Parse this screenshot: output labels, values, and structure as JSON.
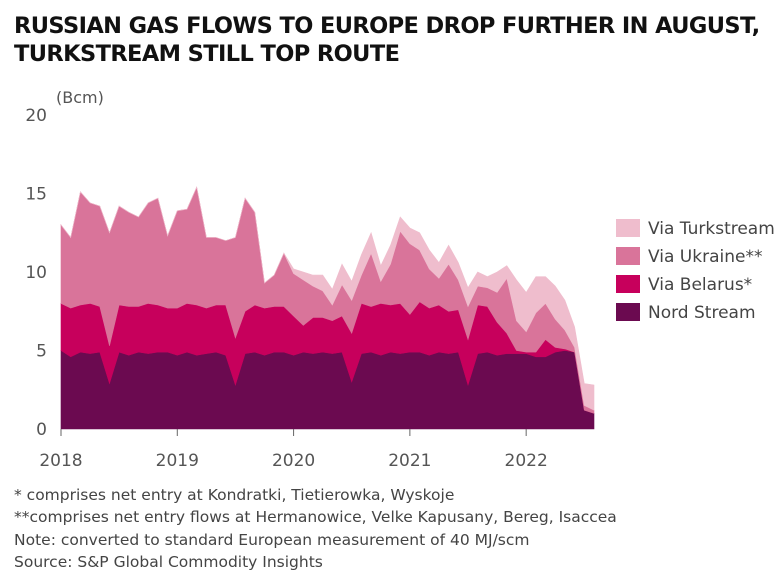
{
  "title_lines": [
    "RUSSIAN GAS FLOWS TO EUROPE DROP FURTHER IN AUGUST,",
    "TURKSTREAM STILL TOP ROUTE"
  ],
  "notes": [
    "* comprises net entry at Kondratki, Tietierowka, Wyskoje",
    "**comprises net entry flows at Hermanowice, Velke Kapusany, Bereg, Isaccea",
    "Note: converted to standard European measurement of 40 MJ/scm",
    "Source: S&P Global Commodity Insights"
  ],
  "chart_data": {
    "type": "area",
    "stacked": true,
    "ylabel": "(Bcm)",
    "ylim": [
      0,
      20
    ],
    "yticks": [
      0,
      5,
      10,
      15,
      20
    ],
    "xlim": [
      "2018-01",
      "2022-08"
    ],
    "xticks": [
      {
        "label": "2018",
        "value": "2018-01"
      },
      {
        "label": "2019",
        "value": "2019-01"
      },
      {
        "label": "2020",
        "value": "2020-01"
      },
      {
        "label": "2021",
        "value": "2021-01"
      },
      {
        "label": "2022",
        "value": "2022-01"
      }
    ],
    "legend_position": "right",
    "x": [
      "2018-01",
      "2018-02",
      "2018-03",
      "2018-04",
      "2018-05",
      "2018-06",
      "2018-07",
      "2018-08",
      "2018-09",
      "2018-10",
      "2018-11",
      "2018-12",
      "2019-01",
      "2019-02",
      "2019-03",
      "2019-04",
      "2019-05",
      "2019-06",
      "2019-07",
      "2019-08",
      "2019-09",
      "2019-10",
      "2019-11",
      "2019-12",
      "2020-01",
      "2020-02",
      "2020-03",
      "2020-04",
      "2020-05",
      "2020-06",
      "2020-07",
      "2020-08",
      "2020-09",
      "2020-10",
      "2020-11",
      "2020-12",
      "2021-01",
      "2021-02",
      "2021-03",
      "2021-04",
      "2021-05",
      "2021-06",
      "2021-07",
      "2021-08",
      "2021-09",
      "2021-10",
      "2021-11",
      "2021-12",
      "2022-01",
      "2022-02",
      "2022-03",
      "2022-04",
      "2022-05",
      "2022-06",
      "2022-07",
      "2022-08"
    ],
    "series": [
      {
        "name": "Nord Stream",
        "color": "#6b0a50",
        "values": [
          5.0,
          4.6,
          4.9,
          4.8,
          4.9,
          2.9,
          4.9,
          4.7,
          4.9,
          4.8,
          4.9,
          4.9,
          4.7,
          4.9,
          4.7,
          4.8,
          4.9,
          4.7,
          2.8,
          4.8,
          4.9,
          4.7,
          4.9,
          4.9,
          4.7,
          4.9,
          4.8,
          4.9,
          4.8,
          4.9,
          3.0,
          4.8,
          4.9,
          4.7,
          4.9,
          4.8,
          4.9,
          4.9,
          4.7,
          4.9,
          4.8,
          4.9,
          2.8,
          4.8,
          4.9,
          4.7,
          4.8,
          4.8,
          4.8,
          4.6,
          4.6,
          4.9,
          5.0,
          4.9,
          1.2,
          1.0
        ]
      },
      {
        "name": "Via Belarus*",
        "color": "#c7005c",
        "values": [
          3.0,
          3.1,
          3.0,
          3.2,
          2.9,
          2.4,
          3.0,
          3.1,
          2.9,
          3.2,
          3.0,
          2.8,
          3.0,
          3.1,
          3.2,
          2.9,
          3.0,
          3.2,
          3.0,
          2.7,
          3.0,
          3.0,
          2.9,
          2.9,
          2.5,
          1.7,
          2.3,
          2.2,
          2.1,
          2.3,
          3.1,
          3.2,
          2.9,
          3.3,
          3.0,
          3.2,
          2.4,
          3.2,
          3.0,
          3.0,
          2.7,
          2.7,
          2.9,
          3.1,
          2.9,
          2.1,
          1.3,
          0.2,
          0.1,
          0.3,
          1.1,
          0.3,
          0.1,
          0.0,
          0.0,
          0.0
        ]
      },
      {
        "name": "Via Ukraine**",
        "color": "#d9749a",
        "values": [
          5.0,
          4.5,
          7.2,
          6.4,
          6.4,
          7.2,
          6.3,
          6.0,
          5.7,
          6.4,
          6.8,
          4.6,
          6.2,
          6.0,
          7.5,
          4.5,
          4.3,
          4.1,
          6.4,
          7.2,
          5.9,
          1.6,
          2.0,
          3.4,
          2.7,
          2.9,
          2.0,
          1.7,
          1.0,
          2.0,
          2.1,
          1.8,
          3.4,
          1.4,
          2.6,
          4.6,
          4.5,
          3.3,
          2.5,
          1.7,
          3.0,
          1.9,
          2.1,
          1.2,
          1.2,
          1.9,
          3.5,
          1.9,
          1.3,
          2.5,
          2.3,
          1.8,
          1.2,
          0.3,
          0.3,
          0.2
        ]
      },
      {
        "name": "Via Turkstream",
        "color": "#efbdcd",
        "values": [
          0.0,
          0.0,
          0.0,
          0.0,
          0.0,
          0.0,
          0.0,
          0.0,
          0.0,
          0.0,
          0.0,
          0.0,
          0.0,
          0.0,
          0.0,
          0.0,
          0.0,
          0.0,
          0.0,
          0.0,
          0.0,
          0.0,
          0.0,
          0.0,
          0.3,
          0.5,
          0.7,
          1.0,
          1.0,
          1.3,
          1.2,
          1.3,
          1.3,
          1.0,
          1.2,
          0.9,
          1.0,
          1.1,
          1.2,
          1.0,
          1.2,
          1.1,
          1.2,
          0.9,
          0.7,
          1.3,
          0.8,
          2.6,
          2.5,
          2.3,
          1.7,
          2.1,
          1.9,
          1.3,
          1.4,
          1.6
        ]
      }
    ]
  }
}
